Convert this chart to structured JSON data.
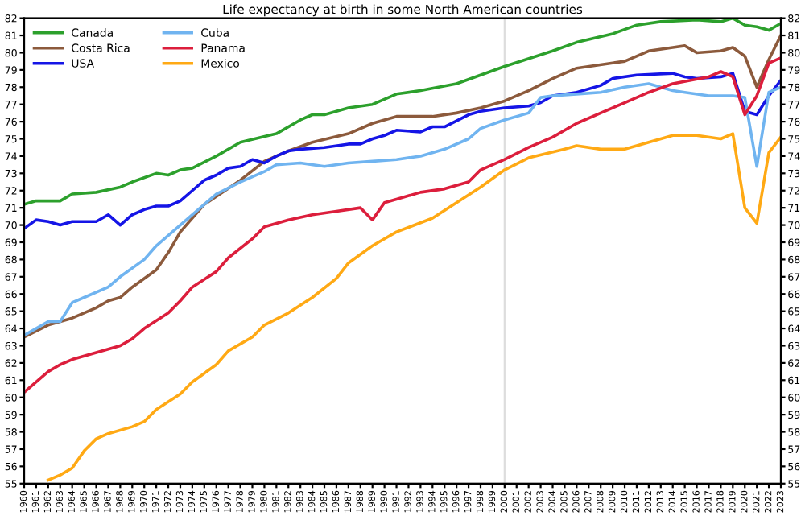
{
  "chart_data": {
    "type": "line",
    "title": "Life expectancy at birth in some North American countries",
    "xlim": [
      1960,
      2023
    ],
    "xticks": [
      1960,
      1961,
      1962,
      1963,
      1964,
      1965,
      1966,
      1967,
      1968,
      1969,
      1970,
      1971,
      1972,
      1973,
      1974,
      1975,
      1976,
      1977,
      1978,
      1979,
      1980,
      1981,
      1982,
      1983,
      1984,
      1985,
      1986,
      1987,
      1988,
      1989,
      1990,
      1991,
      1992,
      1993,
      1994,
      1995,
      1996,
      1997,
      1998,
      1999,
      2000,
      2001,
      2002,
      2003,
      2004,
      2005,
      2006,
      2007,
      2008,
      2009,
      2010,
      2011,
      2012,
      2013,
      2014,
      2015,
      2016,
      2017,
      2018,
      2019,
      2020,
      2021,
      2022,
      2023
    ],
    "ylim": [
      55,
      82
    ],
    "yticks": [
      55,
      56,
      57,
      58,
      59,
      60,
      61,
      62,
      63,
      64,
      65,
      66,
      67,
      68,
      69,
      70,
      71,
      72,
      73,
      74,
      75,
      76,
      77,
      78,
      79,
      80,
      81,
      82
    ],
    "y2lim": [
      55,
      82
    ],
    "y2ticks": [
      55,
      56,
      57,
      58,
      59,
      60,
      61,
      62,
      63,
      64,
      65,
      66,
      67,
      68,
      69,
      70,
      71,
      72,
      73,
      74,
      75,
      76,
      77,
      78,
      79,
      80,
      81,
      82
    ],
    "legend": "top left",
    "grid": false,
    "marker": "none",
    "line_style": "solid",
    "ref_lines": [
      {
        "axis": "x",
        "value": 2000,
        "color": "#dddddd"
      }
    ],
    "series": [
      {
        "name": "Canada",
        "color": "#2ca02c",
        "x": [
          1960,
          1961,
          1963,
          1964,
          1966,
          1968,
          1969,
          1971,
          1972,
          1973,
          1974,
          1976,
          1978,
          1981,
          1983,
          1984,
          1985,
          1987,
          1989,
          1991,
          1993,
          1996,
          2000,
          2004,
          2006,
          2009,
          2011,
          2013,
          2016,
          2018,
          2019,
          2020,
          2021,
          2022,
          2023
        ],
        "values": [
          71.2,
          71.4,
          71.4,
          71.8,
          71.9,
          72.2,
          72.5,
          73.0,
          72.9,
          73.2,
          73.3,
          74.0,
          74.8,
          75.3,
          76.1,
          76.4,
          76.4,
          76.8,
          77.0,
          77.6,
          77.8,
          78.2,
          79.2,
          80.1,
          80.6,
          81.1,
          81.6,
          81.8,
          81.9,
          81.8,
          82.0,
          81.6,
          81.5,
          81.3,
          81.7
        ]
      },
      {
        "name": "Costa Rica",
        "color": "#8c5a3c",
        "x": [
          1960,
          1962,
          1963,
          1964,
          1966,
          1967,
          1968,
          1969,
          1971,
          1972,
          1973,
          1975,
          1978,
          1980,
          1982,
          1984,
          1987,
          1989,
          1991,
          1994,
          1996,
          1998,
          2000,
          2002,
          2004,
          2006,
          2009,
          2010,
          2012,
          2014,
          2015,
          2016,
          2018,
          2019,
          2020,
          2021,
          2022,
          2023
        ],
        "values": [
          63.5,
          64.2,
          64.4,
          64.6,
          65.2,
          65.6,
          65.8,
          66.4,
          67.4,
          68.4,
          69.6,
          71.2,
          72.6,
          73.7,
          74.3,
          74.8,
          75.3,
          75.9,
          76.3,
          76.3,
          76.5,
          76.8,
          77.2,
          77.8,
          78.5,
          79.1,
          79.4,
          79.5,
          80.1,
          80.3,
          80.4,
          80.0,
          80.1,
          80.3,
          79.8,
          78.0,
          79.6,
          81.0
        ]
      },
      {
        "name": "USA",
        "color": "#1515e6",
        "x": [
          1960,
          1961,
          1962,
          1963,
          1964,
          1966,
          1967,
          1968,
          1969,
          1970,
          1971,
          1972,
          1973,
          1974,
          1975,
          1976,
          1977,
          1978,
          1979,
          1980,
          1981,
          1982,
          1983,
          1985,
          1987,
          1988,
          1989,
          1990,
          1991,
          1993,
          1994,
          1995,
          1997,
          1998,
          2000,
          2002,
          2003,
          2004,
          2006,
          2008,
          2009,
          2011,
          2014,
          2015,
          2016,
          2018,
          2019,
          2020,
          2021,
          2022,
          2023
        ],
        "values": [
          69.8,
          70.3,
          70.2,
          70.0,
          70.2,
          70.2,
          70.6,
          70.0,
          70.6,
          70.9,
          71.1,
          71.1,
          71.4,
          72.0,
          72.6,
          72.9,
          73.3,
          73.4,
          73.8,
          73.6,
          74.0,
          74.3,
          74.4,
          74.5,
          74.7,
          74.7,
          75.0,
          75.2,
          75.5,
          75.4,
          75.7,
          75.7,
          76.4,
          76.6,
          76.8,
          76.9,
          77.1,
          77.5,
          77.7,
          78.1,
          78.5,
          78.7,
          78.8,
          78.6,
          78.5,
          78.6,
          78.8,
          76.6,
          76.4,
          77.5,
          78.4
        ]
      },
      {
        "name": "Cuba",
        "color": "#70b4f0",
        "x": [
          1960,
          1962,
          1963,
          1964,
          1965,
          1967,
          1968,
          1970,
          1971,
          1973,
          1975,
          1976,
          1978,
          1980,
          1981,
          1983,
          1985,
          1987,
          1989,
          1991,
          1993,
          1995,
          1997,
          1998,
          2000,
          2002,
          2003,
          2004,
          2006,
          2008,
          2010,
          2012,
          2014,
          2015,
          2017,
          2019,
          2020,
          2021,
          2022,
          2023
        ],
        "values": [
          63.6,
          64.4,
          64.4,
          65.5,
          65.8,
          66.4,
          67.0,
          68.0,
          68.8,
          70.0,
          71.2,
          71.8,
          72.5,
          73.1,
          73.5,
          73.6,
          73.4,
          73.6,
          73.7,
          73.8,
          74.0,
          74.4,
          75.0,
          75.6,
          76.1,
          76.5,
          77.4,
          77.5,
          77.6,
          77.7,
          78.0,
          78.2,
          77.8,
          77.7,
          77.5,
          77.5,
          77.4,
          73.4,
          77.7,
          78.0
        ]
      },
      {
        "name": "Panama",
        "color": "#dc1e3c",
        "x": [
          1960,
          1962,
          1963,
          1964,
          1966,
          1968,
          1969,
          1970,
          1972,
          1973,
          1974,
          1976,
          1977,
          1979,
          1980,
          1982,
          1984,
          1986,
          1988,
          1989,
          1990,
          1991,
          1993,
          1995,
          1997,
          1998,
          2000,
          2002,
          2004,
          2006,
          2008,
          2010,
          2012,
          2014,
          2017,
          2018,
          2019,
          2020,
          2021,
          2022,
          2023
        ],
        "values": [
          60.3,
          61.5,
          61.9,
          62.2,
          62.6,
          63.0,
          63.4,
          64.0,
          64.9,
          65.6,
          66.4,
          67.3,
          68.1,
          69.2,
          69.9,
          70.3,
          70.6,
          70.8,
          71.0,
          70.3,
          71.3,
          71.5,
          71.9,
          72.1,
          72.5,
          73.2,
          73.8,
          74.5,
          75.1,
          75.9,
          76.5,
          77.1,
          77.7,
          78.2,
          78.6,
          78.9,
          78.6,
          76.4,
          77.5,
          79.4,
          79.7
        ]
      },
      {
        "name": "Mexico",
        "color": "#ffa914",
        "x": [
          1962,
          1963,
          1964,
          1965,
          1966,
          1967,
          1969,
          1970,
          1971,
          1973,
          1974,
          1976,
          1977,
          1979,
          1980,
          1982,
          1984,
          1986,
          1987,
          1989,
          1991,
          1994,
          1996,
          1998,
          2000,
          2002,
          2005,
          2006,
          2008,
          2010,
          2012,
          2014,
          2016,
          2018,
          2019,
          2020,
          2021,
          2022,
          2023
        ],
        "values": [
          55.2,
          55.5,
          55.9,
          56.9,
          57.6,
          57.9,
          58.3,
          58.6,
          59.3,
          60.2,
          60.9,
          61.9,
          62.7,
          63.5,
          64.2,
          64.9,
          65.8,
          66.9,
          67.8,
          68.8,
          69.6,
          70.4,
          71.3,
          72.2,
          73.2,
          73.9,
          74.4,
          74.6,
          74.4,
          74.4,
          74.8,
          75.2,
          75.2,
          75.0,
          75.3,
          71.0,
          70.1,
          74.2,
          75.1
        ]
      }
    ]
  }
}
